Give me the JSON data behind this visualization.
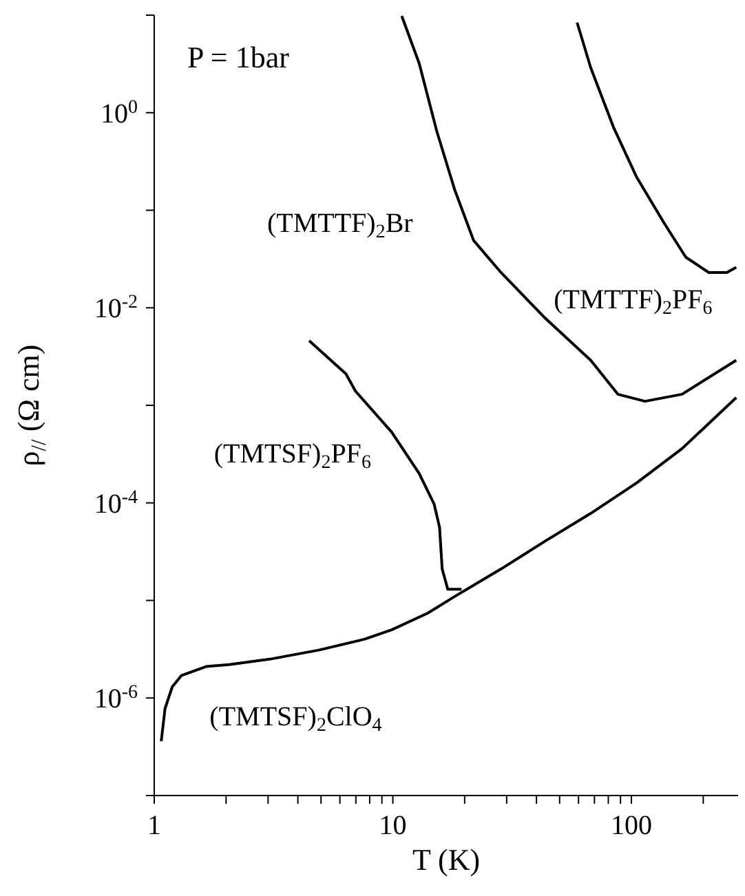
{
  "chart_data": {
    "type": "line",
    "xlabel": "T (K)",
    "ylabel": "ρ$_{//}$ (Ω cm)",
    "log": "xy",
    "grid": false,
    "marker": "none",
    "line_style": "solid",
    "xlim": [
      1,
      280
    ],
    "ylim": [
      1e-07,
      10
    ],
    "xticks": [
      1,
      {
        "value": 2,
        "label": null
      },
      {
        "value": 3,
        "label": null
      },
      {
        "value": 4,
        "label": null
      },
      {
        "value": 5,
        "label": null
      },
      {
        "value": 6,
        "label": null
      },
      {
        "value": 7,
        "label": null
      },
      {
        "value": 8,
        "label": null
      },
      {
        "value": 9,
        "label": null
      },
      10,
      {
        "value": 20,
        "label": null
      },
      {
        "value": 30,
        "label": null
      },
      {
        "value": 40,
        "label": null
      },
      {
        "value": 50,
        "label": null
      },
      {
        "value": 60,
        "label": null
      },
      {
        "value": 70,
        "label": null
      },
      {
        "value": 80,
        "label": null
      },
      {
        "value": 90,
        "label": null
      },
      100,
      {
        "value": 200,
        "label": null
      }
    ],
    "yticks": [
      {
        "value": 10,
        "label": null
      },
      {
        "value": 1,
        "label": "10$^{0}$"
      },
      {
        "value": 0.1,
        "label": null
      },
      {
        "value": 0.01,
        "label": "10$^{-2}$"
      },
      {
        "value": 0.001,
        "label": null
      },
      {
        "value": 0.0001,
        "label": "10$^{-4}$"
      },
      {
        "value": 1e-05,
        "label": null
      },
      {
        "value": 1e-06,
        "label": "10$^{-6}$"
      },
      {
        "value": 1e-07,
        "label": null
      }
    ],
    "series": [
      {
        "name": "(TMTSF)$_{2}$ClO$_{4}$",
        "color": "#000000",
        "x": [
          1.07,
          1.11,
          1.19,
          1.3,
          1.65,
          2.06,
          3.05,
          4.9,
          7.6,
          9.9,
          14,
          18.2,
          28.4,
          43.8,
          67.5,
          105,
          163,
          275
        ],
        "values": [
          3.6e-07,
          7.8e-07,
          1.3e-06,
          1.7e-06,
          2.1e-06,
          2.2e-06,
          2.5e-06,
          3.1e-06,
          4e-06,
          5e-06,
          7.4e-06,
          1.1e-05,
          2.1e-05,
          4.1e-05,
          7.8e-05,
          0.00016,
          0.00036,
          0.0012
        ]
      },
      {
        "name": "(TMTSF)$_{2}$PF$_{6}$",
        "color": "#000000",
        "x": [
          4.46,
          6.36,
          6.97,
          9.9,
          12.9,
          14.9,
          15.7,
          16.1,
          17.0,
          19.4
        ],
        "values": [
          0.0046,
          0.0021,
          0.0014,
          0.00053,
          0.0002,
          9.7e-05,
          5.6e-05,
          2.1e-05,
          1.3e-05,
          1.3e-05
        ]
      },
      {
        "name": "(TMTTF)$_{2}$Br",
        "color": "#000000",
        "x": [
          10.9,
          12.9,
          15.3,
          18.2,
          21.8,
          28.4,
          43.8,
          67.5,
          87.7,
          114,
          163,
          275
        ],
        "values": [
          9.8,
          3.2,
          0.64,
          0.16,
          0.049,
          0.023,
          0.0077,
          0.0029,
          0.0013,
          0.0011,
          0.0013,
          0.0029
        ]
      },
      {
        "name": "(TMTTF)$_{2}$PF$_{6}$",
        "color": "#000000",
        "x": [
          59.2,
          67.5,
          84.3,
          105,
          137,
          169,
          211,
          251,
          275
        ],
        "values": [
          8.4,
          2.9,
          0.7,
          0.22,
          0.074,
          0.033,
          0.023,
          0.023,
          0.026
        ]
      }
    ],
    "annotations": [
      "P = 1bar"
    ]
  }
}
